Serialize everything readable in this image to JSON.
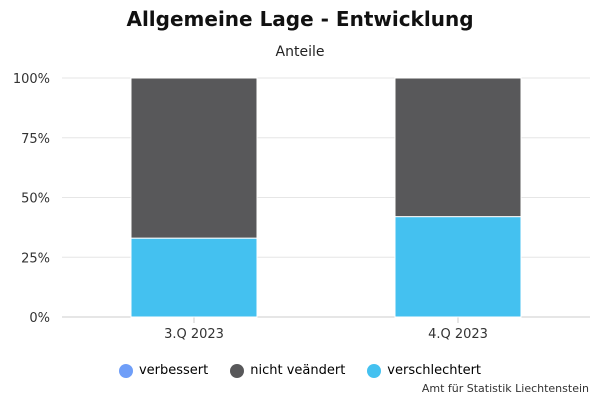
{
  "chart_data": {
    "type": "bar",
    "stacked": true,
    "title": "Allgemeine Lage - Entwicklung",
    "subtitle": "Anteile",
    "categories": [
      "3.Q 2023",
      "4.Q 2023"
    ],
    "series": [
      {
        "name": "verbessert",
        "color": "#6f9ef8",
        "values": [
          0,
          0
        ]
      },
      {
        "name": "nicht veändert",
        "color": "#58585a",
        "values": [
          67,
          58
        ]
      },
      {
        "name": "verschlechtert",
        "color": "#44c1f0",
        "values": [
          33,
          42
        ]
      }
    ],
    "ylim": [
      0,
      100
    ],
    "yticks": [
      0,
      25,
      50,
      75,
      100
    ],
    "ytick_labels": [
      "0%",
      "25%",
      "50%",
      "75%",
      "100%"
    ],
    "grid": true,
    "legend_position": "bottom"
  },
  "credit": "Amt für Statistik Liechtenstein"
}
